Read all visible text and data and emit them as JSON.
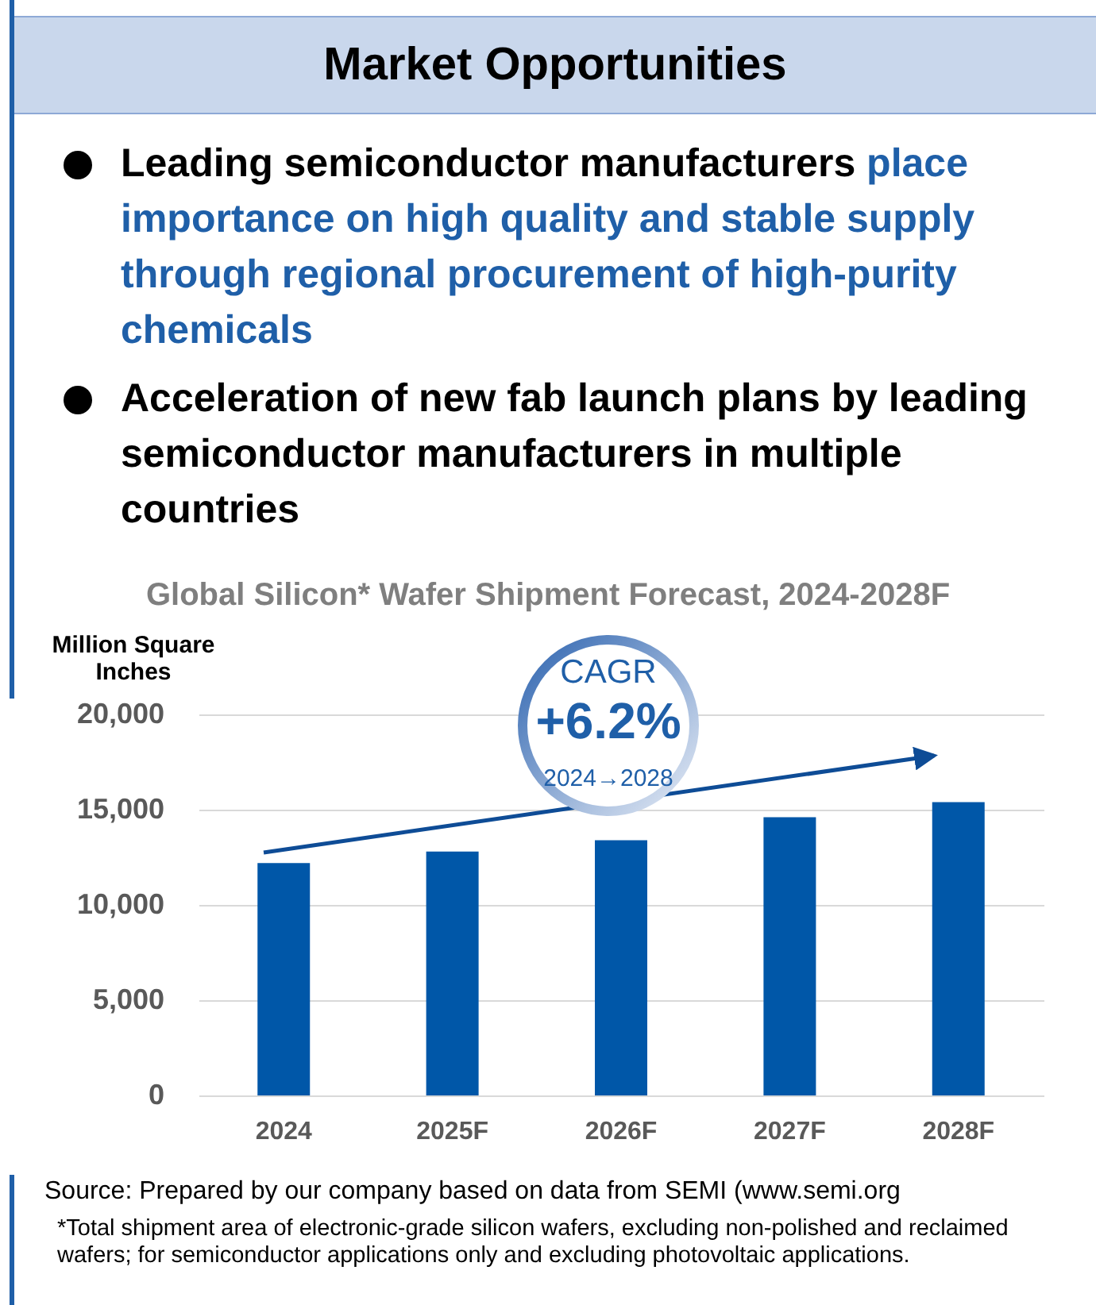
{
  "chart_data": {
    "type": "bar",
    "title": "Market Opportunities",
    "subtitle": "Global Silicon* Wafer Shipment Forecast, 2024-2028F",
    "ylabel": "Million Square Inches",
    "categories": [
      "2024",
      "2025F",
      "2026F",
      "2027F",
      "2028F"
    ],
    "values": [
      12200,
      12800,
      13400,
      14600,
      15400
    ],
    "color": "#0057a8",
    "ylim": [
      0,
      20000
    ],
    "yticks": [
      {
        "value": 0,
        "label": "0"
      },
      {
        "value": 5000,
        "label": "5,000"
      },
      {
        "value": 10000,
        "label": "10,000"
      },
      {
        "value": 15000,
        "label": "15,000"
      },
      {
        "value": 20000,
        "label": "20,000"
      }
    ],
    "grid": "y",
    "annotations": [
      "Leading semiconductor manufacturers",
      "place importance on high quality and stable supply through regional procurement of high-purity chemicals",
      "Acceleration of new fab launch plans by leading semiconductor manufacturers in multiple countries",
      "CAGR",
      "+6.2%",
      "2024→2028",
      "Source: Prepared by our company based on data from SEMI (www.semi.org",
      "*Total shipment area of electronic-grade silicon wafers, excluding non-polished and reclaimed wafers; for semiconductor applications only and excluding photovoltaic applications."
    ]
  }
}
